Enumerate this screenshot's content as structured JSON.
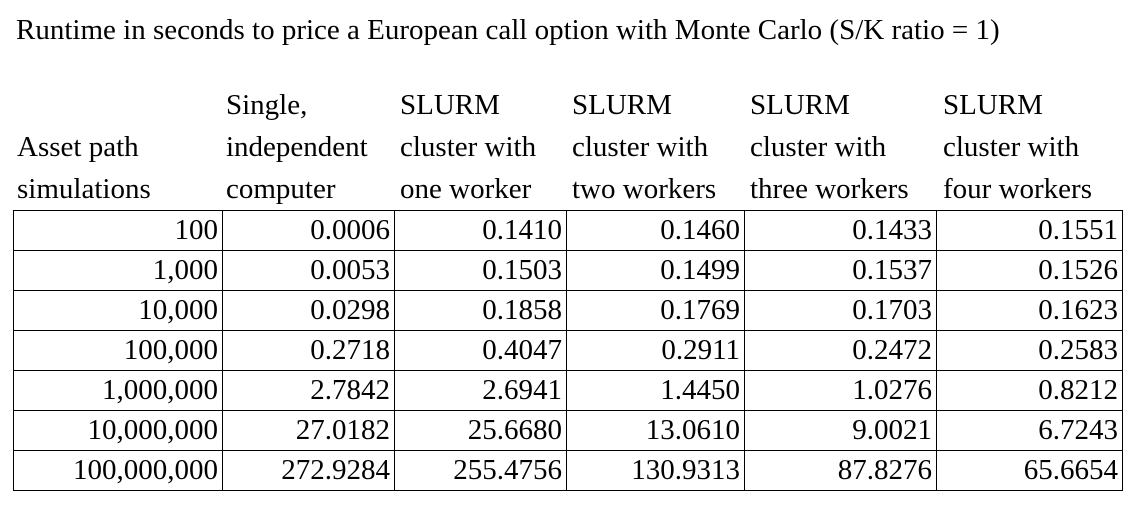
{
  "chart_data": {
    "type": "table",
    "title": "Runtime in seconds to price a European call option with Monte Carlo (S/K ratio = 1)",
    "columns": [
      [
        "Asset path",
        "simulations"
      ],
      [
        "Single,",
        "independent",
        "computer"
      ],
      [
        "SLURM",
        "cluster with",
        "one worker"
      ],
      [
        "SLURM",
        "cluster with",
        "two workers"
      ],
      [
        "SLURM",
        "cluster with",
        "three workers"
      ],
      [
        "SLURM",
        "cluster with",
        "four workers"
      ]
    ],
    "rows": [
      [
        "100",
        "0.0006",
        "0.1410",
        "0.1460",
        "0.1433",
        "0.1551"
      ],
      [
        "1,000",
        "0.0053",
        "0.1503",
        "0.1499",
        "0.1537",
        "0.1526"
      ],
      [
        "10,000",
        "0.0298",
        "0.1858",
        "0.1769",
        "0.1703",
        "0.1623"
      ],
      [
        "100,000",
        "0.2718",
        "0.4047",
        "0.2911",
        "0.2472",
        "0.2583"
      ],
      [
        "1,000,000",
        "2.7842",
        "2.6941",
        "1.4450",
        "1.0276",
        "0.8212"
      ],
      [
        "10,000,000",
        "27.0182",
        "25.6680",
        "13.0610",
        "9.0021",
        "6.7243"
      ],
      [
        "100,000,000",
        "272.9284",
        "255.4756",
        "130.9313",
        "87.8276",
        "65.6654"
      ]
    ]
  }
}
